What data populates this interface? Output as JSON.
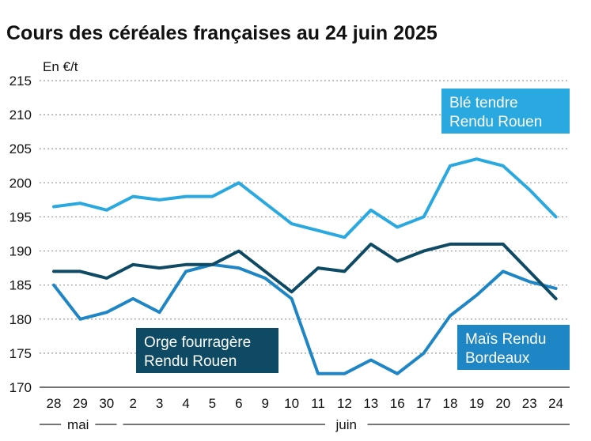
{
  "chart_data": {
    "type": "line",
    "title": "Cours des céréales françaises au 24 juin 2025",
    "ylabel": "En €/t",
    "ylim": [
      170,
      215
    ],
    "yticks": [
      170,
      175,
      180,
      185,
      190,
      195,
      200,
      205,
      210,
      215
    ],
    "categories": [
      "28",
      "29",
      "30",
      "2",
      "3",
      "4",
      "5",
      "6",
      "9",
      "10",
      "11",
      "12",
      "13",
      "16",
      "17",
      "18",
      "19",
      "20",
      "23",
      "24"
    ],
    "months": [
      {
        "label": "mai",
        "from": 0,
        "to": 2
      },
      {
        "label": "juin",
        "from": 3,
        "to": 19
      }
    ],
    "series": [
      {
        "name": "Blé tendre Rendu Rouen",
        "label_lines": [
          "Blé tendre",
          "Rendu Rouen"
        ],
        "color": "#2aa9e0",
        "values": [
          196.5,
          197,
          196,
          198,
          197.5,
          198,
          198,
          200,
          197,
          194,
          193,
          192,
          196,
          193.5,
          195,
          202.5,
          203.5,
          202.5,
          199,
          195
        ]
      },
      {
        "name": "Orge fourragère Rendu Rouen",
        "label_lines": [
          "Orge fourragère",
          "Rendu Rouen"
        ],
        "color": "#0e4a64",
        "values": [
          187,
          187,
          186,
          188,
          187.5,
          188,
          188,
          190,
          187,
          184,
          187.5,
          187,
          191,
          188.5,
          190,
          191,
          191,
          191,
          187,
          183
        ]
      },
      {
        "name": "Maïs Rendu Bordeaux",
        "label_lines": [
          "Maïs Rendu",
          "Bordeaux"
        ],
        "color": "#1f86c6",
        "values": [
          185,
          180,
          181,
          183,
          181,
          187,
          188,
          187.5,
          186,
          183,
          172,
          172,
          174,
          172,
          175,
          180.5,
          183.5,
          187,
          185.5,
          184.5
        ]
      }
    ]
  }
}
